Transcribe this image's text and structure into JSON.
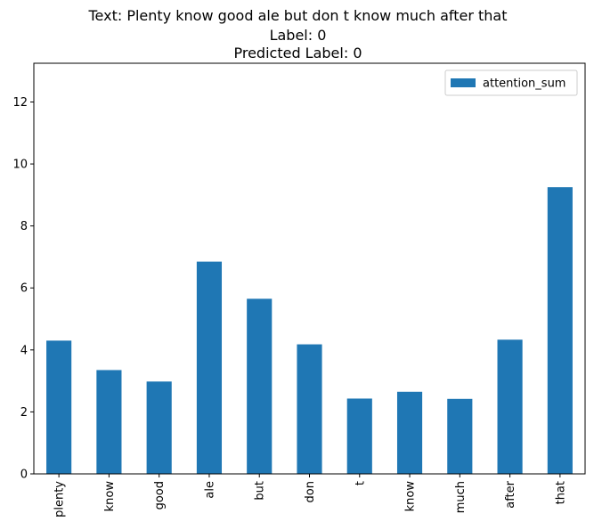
{
  "chart_data": {
    "type": "bar",
    "title_lines": [
      "Text: Plenty know good ale but don t know much after that",
      "Label: 0",
      "Predicted Label: 0"
    ],
    "xlabel": "",
    "ylabel": "",
    "categories": [
      "plenty",
      "know",
      "good",
      "ale",
      "but",
      "don",
      "t",
      "know",
      "much",
      "after",
      "that"
    ],
    "series": [
      {
        "name": "attention_sum",
        "color": "#1f77b4",
        "values": [
          4.3,
          3.35,
          2.98,
          6.85,
          5.65,
          4.18,
          2.43,
          2.65,
          2.42,
          4.33,
          9.25
        ]
      }
    ],
    "ylim": [
      0,
      13.25
    ],
    "yticks": [
      0,
      2,
      4,
      6,
      8,
      10,
      12
    ],
    "grid": false,
    "legend_position": "top-right"
  }
}
